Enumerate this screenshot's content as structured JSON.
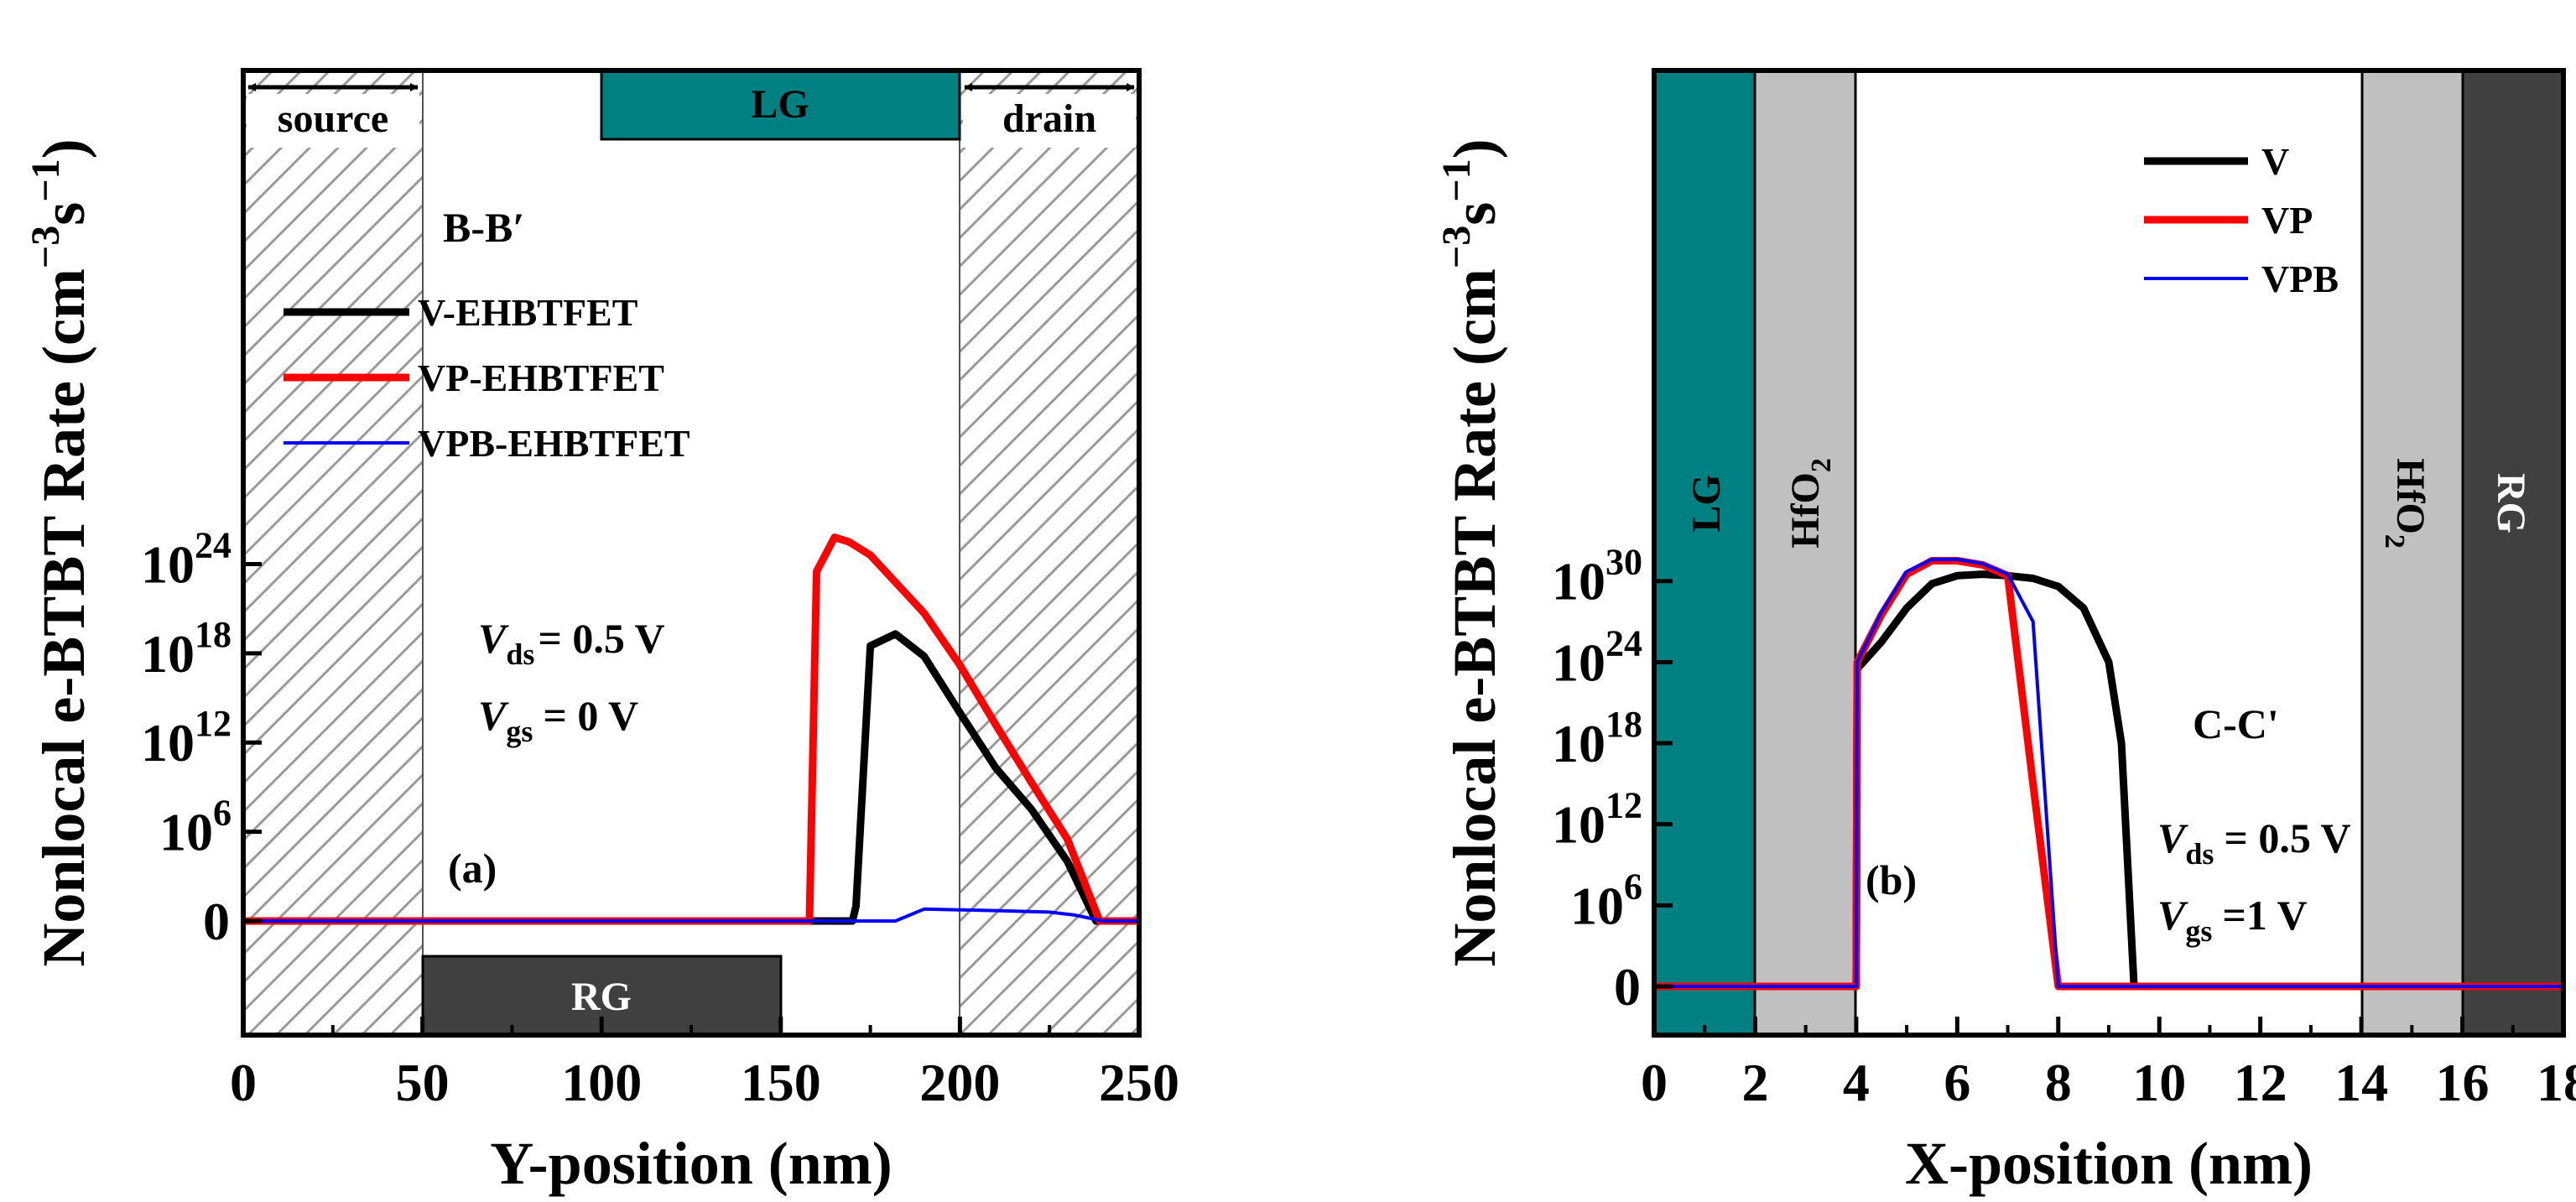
{
  "chart_data": [
    {
      "id": "a",
      "type": "line",
      "panel_label": "(a)",
      "xlabel": "Y-position (nm)",
      "ylabel": "Nonlocal e-BTBT Rate (cm−3s−1)",
      "xlim": [
        0,
        250
      ],
      "y_scale": "custom (0 baseline, 10^6 decades)",
      "x_ticks": [
        "0",
        "50",
        "100",
        "150",
        "200",
        "250"
      ],
      "y_ticks": [
        {
          "base": "0",
          "exp": ""
        },
        {
          "base": "10",
          "exp": "6"
        },
        {
          "base": "10",
          "exp": "12"
        },
        {
          "base": "10",
          "exp": "18"
        },
        {
          "base": "10",
          "exp": "24"
        }
      ],
      "cut_label": "B-B′",
      "bias": [
        {
          "var": "V",
          "sub": "ds",
          "value": "= 0.5 V"
        },
        {
          "var": "V",
          "sub": "gs",
          "value": "= 0 V"
        }
      ],
      "regions": {
        "source": {
          "label": "source",
          "x": [
            0,
            50
          ]
        },
        "drain": {
          "label": "drain",
          "x": [
            200,
            250
          ]
        },
        "top_gate": {
          "label": "LG",
          "x": [
            100,
            200
          ]
        },
        "bottom_gate": {
          "label": "RG",
          "x": [
            50,
            150
          ]
        }
      },
      "legend_position": "upper-left",
      "series": [
        {
          "name": "V-EHBTFET",
          "color": "#000000",
          "x": [
            0,
            170,
            171,
            175,
            182,
            190,
            200,
            210,
            220,
            230,
            238,
            250
          ],
          "y": [
            0,
            0,
            1,
            18.5,
            19.3,
            17.8,
            14.0,
            10.3,
            7.5,
            4.0,
            0,
            0
          ]
        },
        {
          "name": "VP-EHBTFET",
          "color": "#ff0000",
          "x": [
            0,
            158,
            160,
            165,
            169,
            175,
            190,
            200,
            210,
            220,
            230,
            239,
            250
          ],
          "y": [
            0,
            0,
            23.5,
            25.8,
            25.5,
            24.6,
            20.7,
            17.2,
            13.2,
            9.3,
            5.5,
            0,
            0
          ]
        },
        {
          "name": "VPB-EHBTFET",
          "color": "#0000ff",
          "x": [
            0,
            182,
            190,
            210,
            225,
            232,
            240,
            250
          ],
          "y": [
            0,
            0,
            0.8,
            0.7,
            0.6,
            0.4,
            0,
            0
          ]
        }
      ]
    },
    {
      "id": "b",
      "type": "line",
      "panel_label": "(b)",
      "xlabel": "X-position (nm)",
      "ylabel": "Nonlocal e-BTBT Rate (cm−3s−1)",
      "xlim": [
        0,
        18
      ],
      "y_scale": "custom (0 baseline, 10^6 decades)",
      "x_ticks": [
        "0",
        "2",
        "4",
        "6",
        "8",
        "10",
        "12",
        "14",
        "16",
        "18"
      ],
      "y_ticks": [
        {
          "base": "0",
          "exp": ""
        },
        {
          "base": "10",
          "exp": "6"
        },
        {
          "base": "10",
          "exp": "12"
        },
        {
          "base": "10",
          "exp": "18"
        },
        {
          "base": "10",
          "exp": "24"
        },
        {
          "base": "10",
          "exp": "30"
        }
      ],
      "cut_label": "C-C'",
      "bias": [
        {
          "var": "V",
          "sub": "ds",
          "value": "= 0.5 V"
        },
        {
          "var": "V",
          "sub": "gs",
          "value": "=1 V"
        }
      ],
      "regions": {
        "left_gate": {
          "label": "LG",
          "x": [
            0,
            2
          ]
        },
        "left_oxide": {
          "label": "HfO",
          "sub": "2",
          "x": [
            2,
            4
          ]
        },
        "right_oxide": {
          "label": "HfO",
          "sub": "2",
          "x": [
            14,
            16
          ]
        },
        "right_gate": {
          "label": "RG",
          "x": [
            16,
            18
          ]
        }
      },
      "legend_position": "upper-right",
      "series": [
        {
          "name": "V",
          "color": "#000000",
          "x": [
            0,
            4,
            4.02,
            4.5,
            5,
            5.5,
            6,
            6.5,
            7,
            7.5,
            8,
            8.5,
            9,
            9.25,
            9.5,
            18
          ],
          "y": [
            0,
            0,
            23.5,
            25.5,
            28.0,
            29.8,
            30.4,
            30.5,
            30.4,
            30.2,
            29.6,
            28.0,
            24.0,
            18.0,
            0,
            0
          ]
        },
        {
          "name": "VP",
          "color": "#ff0000",
          "x": [
            0,
            4,
            4.02,
            4.5,
            5,
            5.5,
            6,
            6.5,
            7,
            7.5,
            8,
            18
          ],
          "y": [
            0,
            0,
            24.0,
            27.5,
            30.5,
            31.5,
            31.5,
            31.2,
            30.4,
            15.0,
            0,
            0
          ]
        },
        {
          "name": "VPB",
          "color": "#0000ff",
          "x": [
            0,
            4,
            4.02,
            4.5,
            5,
            5.5,
            6,
            6.5,
            7,
            7.5,
            8,
            18
          ],
          "y": [
            0,
            0,
            24.0,
            27.7,
            30.7,
            31.6,
            31.6,
            31.3,
            30.5,
            27.0,
            0,
            0
          ]
        }
      ]
    }
  ]
}
